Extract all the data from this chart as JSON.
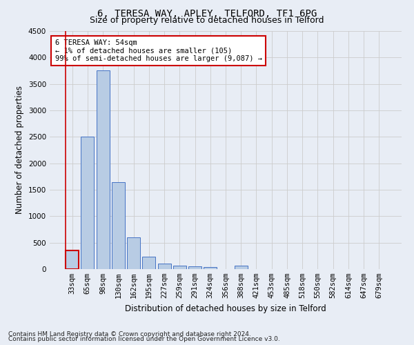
{
  "title": "6, TERESA WAY, APLEY, TELFORD, TF1 6PG",
  "subtitle": "Size of property relative to detached houses in Telford",
  "xlabel": "Distribution of detached houses by size in Telford",
  "ylabel": "Number of detached properties",
  "categories": [
    "33sqm",
    "65sqm",
    "98sqm",
    "130sqm",
    "162sqm",
    "195sqm",
    "227sqm",
    "259sqm",
    "291sqm",
    "324sqm",
    "356sqm",
    "388sqm",
    "421sqm",
    "453sqm",
    "485sqm",
    "518sqm",
    "550sqm",
    "582sqm",
    "614sqm",
    "647sqm",
    "679sqm"
  ],
  "values": [
    350,
    2500,
    3750,
    1650,
    600,
    230,
    110,
    70,
    55,
    40,
    0,
    70,
    0,
    0,
    0,
    0,
    0,
    0,
    0,
    0,
    0
  ],
  "bar_color": "#b8cce4",
  "bar_edge_color": "#4472c4",
  "highlight_bar_index": 0,
  "highlight_bar_edge_color": "#cc0000",
  "annotation_text": "6 TERESA WAY: 54sqm\n← 1% of detached houses are smaller (105)\n99% of semi-detached houses are larger (9,087) →",
  "annotation_box_color": "#ffffff",
  "annotation_box_edge_color": "#cc0000",
  "ylim": [
    0,
    4500
  ],
  "yticks": [
    0,
    500,
    1000,
    1500,
    2000,
    2500,
    3000,
    3500,
    4000,
    4500
  ],
  "grid_color": "#cccccc",
  "background_color": "#e8edf5",
  "footer_line1": "Contains HM Land Registry data © Crown copyright and database right 2024.",
  "footer_line2": "Contains public sector information licensed under the Open Government Licence v3.0.",
  "title_fontsize": 10,
  "subtitle_fontsize": 9,
  "xlabel_fontsize": 8.5,
  "ylabel_fontsize": 8.5,
  "tick_fontsize": 7.5,
  "annotation_fontsize": 7.5,
  "footer_fontsize": 6.5
}
